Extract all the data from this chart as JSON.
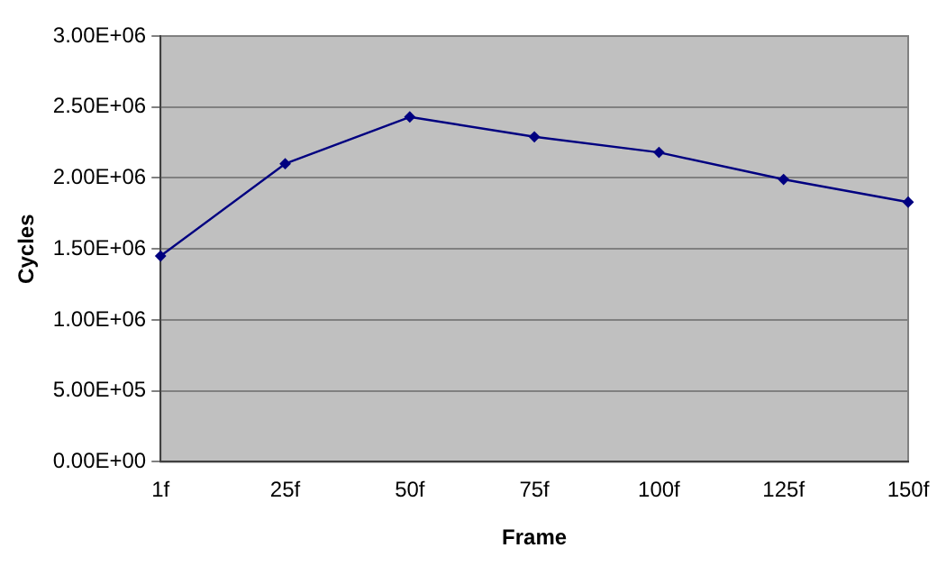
{
  "chart_data": {
    "type": "line",
    "xlabel": "Frame",
    "ylabel": "Cycles",
    "categories": [
      "1f",
      "25f",
      "50f",
      "75f",
      "100f",
      "125f",
      "150f"
    ],
    "series": [
      {
        "color": "#000080",
        "values": [
          1450000,
          2100000,
          2430000,
          2290000,
          2180000,
          1990000,
          1830000
        ]
      }
    ],
    "ylim": [
      0,
      3000000
    ],
    "yticks": [
      {
        "value": 0,
        "label": "0.00E+00"
      },
      {
        "value": 500000,
        "label": "5.00E+05"
      },
      {
        "value": 1000000,
        "label": "1.00E+06"
      },
      {
        "value": 1500000,
        "label": "1.50E+06"
      },
      {
        "value": 2000000,
        "label": "2.00E+06"
      },
      {
        "value": 2500000,
        "label": "2.50E+06"
      },
      {
        "value": 3000000,
        "label": "3.00E+06"
      }
    ],
    "grid": "y",
    "legend": false,
    "marker": "diamond",
    "line_style": "solid"
  }
}
